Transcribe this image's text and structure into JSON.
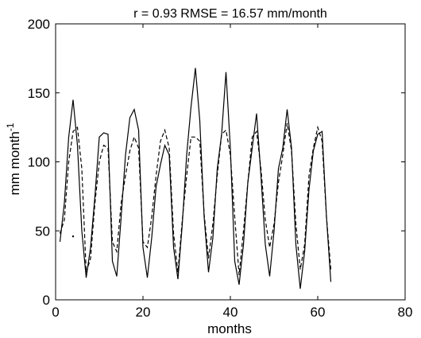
{
  "chart_data": {
    "type": "line",
    "title": "r = 0.93   RMSE = 16.57 mm/month",
    "xlabel": "months",
    "ylabel": "mm month",
    "ylabel_superscript": "-1",
    "xlim": [
      0,
      80
    ],
    "ylim": [
      0,
      200
    ],
    "xticks": [
      0,
      20,
      40,
      60,
      80
    ],
    "yticks": [
      0,
      50,
      100,
      150,
      200
    ],
    "grid": false,
    "legend": "none",
    "series": [
      {
        "style": "solid",
        "color": "#000000",
        "x": [
          1,
          2,
          3,
          4,
          5,
          6,
          7,
          8,
          9,
          10,
          11,
          12,
          13,
          14,
          15,
          16,
          17,
          18,
          19,
          20,
          21,
          22,
          23,
          24,
          25,
          26,
          27,
          28,
          29,
          30,
          31,
          32,
          33,
          34,
          35,
          36,
          37,
          38,
          39,
          40,
          41,
          42,
          43,
          44,
          45,
          46,
          47,
          48,
          49,
          50,
          51,
          52,
          53,
          54,
          55,
          56,
          57,
          58,
          59,
          60,
          61,
          62,
          63
        ],
        "values": [
          42,
          70,
          118,
          145,
          112,
          50,
          16,
          38,
          75,
          118,
          121,
          120,
          28,
          17,
          60,
          105,
          132,
          138,
          123,
          38,
          16,
          45,
          82,
          98,
          112,
          105,
          38,
          15,
          55,
          105,
          140,
          168,
          130,
          60,
          20,
          45,
          95,
          120,
          165,
          110,
          28,
          11,
          40,
          85,
          110,
          135,
          90,
          40,
          17,
          50,
          95,
          110,
          138,
          110,
          40,
          8,
          35,
          80,
          108,
          120,
          122,
          60,
          13
        ]
      },
      {
        "style": "dashed",
        "color": "#000000",
        "x": [
          1,
          2,
          3,
          4,
          5,
          6,
          7,
          8,
          9,
          10,
          11,
          12,
          13,
          14,
          15,
          16,
          17,
          18,
          19,
          20,
          21,
          22,
          23,
          24,
          25,
          26,
          27,
          28,
          29,
          30,
          31,
          32,
          33,
          34,
          35,
          36,
          37,
          38,
          39,
          40,
          41,
          42,
          43,
          44,
          45,
          46,
          47,
          48,
          49,
          50,
          51,
          52,
          53,
          54,
          55,
          56,
          57,
          58,
          59,
          60,
          61,
          62,
          63
        ],
        "values": [
          48,
          58,
          100,
          122,
          125,
          95,
          20,
          30,
          70,
          100,
          112,
          110,
          42,
          35,
          70,
          90,
          108,
          118,
          110,
          42,
          38,
          60,
          90,
          115,
          123,
          110,
          48,
          20,
          58,
          90,
          118,
          118,
          115,
          62,
          30,
          55,
          90,
          120,
          123,
          105,
          60,
          18,
          50,
          85,
          118,
          122,
          95,
          58,
          38,
          55,
          85,
          105,
          128,
          108,
          55,
          22,
          40,
          90,
          110,
          125,
          115,
          60,
          22
        ]
      }
    ],
    "annotations": [
      {
        "x": 4,
        "y": 46,
        "marker": "dot"
      }
    ]
  }
}
